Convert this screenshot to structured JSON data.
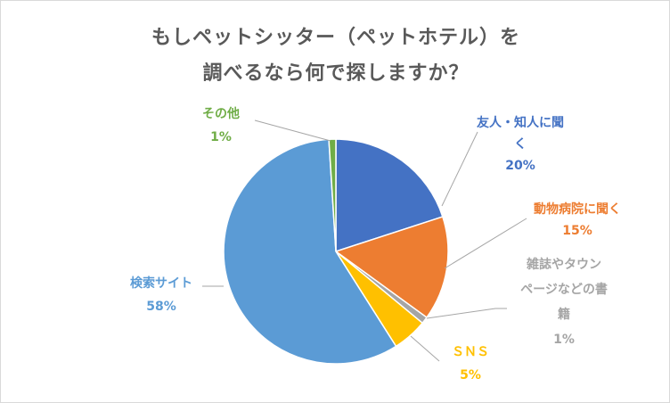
{
  "chart_data": {
    "type": "pie",
    "title_lines": [
      "もしペットシッター（ペットホテル）を",
      "調べるなら何で探しますか？"
    ],
    "slices": [
      {
        "name": "友人・知人に聞く",
        "name_lines": [
          "友人・知人に聞",
          "く"
        ],
        "value": 20,
        "label": "20%",
        "color": "#4472c4"
      },
      {
        "name": "動物病院に聞く",
        "name_lines": [
          "動物病院に聞く"
        ],
        "value": 15,
        "label": "15%",
        "color": "#ed7d31"
      },
      {
        "name": "雑誌やタウンページなどの書籍",
        "name_lines": [
          "雑誌やタウン",
          "ページなどの書",
          "籍"
        ],
        "value": 1,
        "label": "1%",
        "color": "#a5a5a5"
      },
      {
        "name": "ＳＮＳ",
        "name_lines": [
          "ＳＮＳ"
        ],
        "value": 5,
        "label": "5%",
        "color": "#ffc000"
      },
      {
        "name": "検索サイト",
        "name_lines": [
          "検索サイト"
        ],
        "value": 58,
        "label": "58%",
        "color": "#5b9bd5"
      },
      {
        "name": "その他",
        "name_lines": [
          "その他"
        ],
        "value": 1,
        "label": "1%",
        "color": "#70ad47"
      }
    ]
  }
}
